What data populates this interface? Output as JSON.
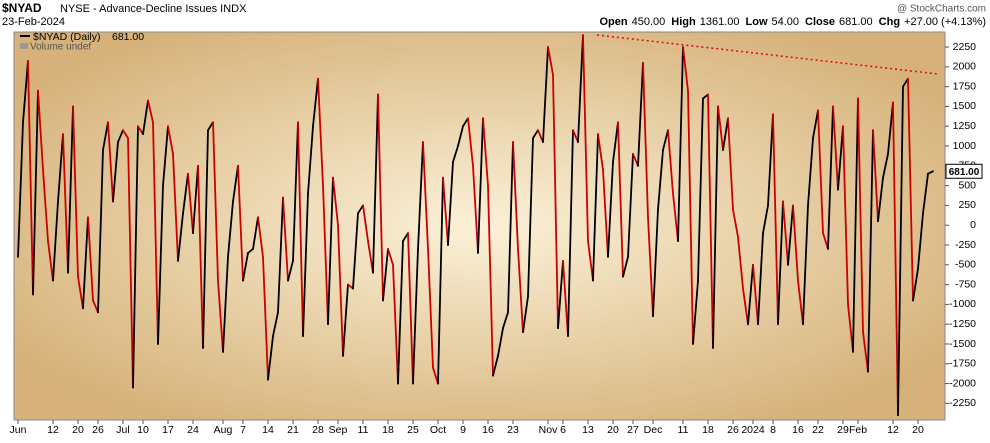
{
  "chart_data": {
    "type": "line",
    "title": "$NYAD",
    "subtitle": "NYSE - Advance-Decline Issues INDX",
    "date": "23-Feb-2024",
    "source": "@ StockCharts.com",
    "quote": [
      {
        "label": "Open",
        "value": "450.00"
      },
      {
        "label": "High",
        "value": "1361.00"
      },
      {
        "label": "Low",
        "value": "54.00"
      },
      {
        "label": "Close",
        "value": "681.00"
      },
      {
        "label": "Chg",
        "value": "+27.00 (+4.13%)"
      }
    ],
    "last_value_label": "681.00",
    "volume_note": "Volume undef",
    "up_color": "#000000",
    "down_color": "#cc0000",
    "grid": false,
    "ylim": [
      -2460,
      2440
    ],
    "yticks": [
      2250,
      2000,
      1750,
      1500,
      1250,
      1000,
      750,
      500,
      250,
      0,
      -250,
      -500,
      -750,
      -1000,
      -1250,
      -1500,
      -1750,
      -2000,
      -2250
    ],
    "categories": [
      "Jun",
      null,
      null,
      null,
      null,
      null,
      null,
      "12",
      null,
      null,
      null,
      null,
      "20",
      null,
      null,
      null,
      "26",
      null,
      null,
      null,
      null,
      "Jul",
      null,
      null,
      null,
      "10",
      null,
      null,
      null,
      null,
      "17",
      null,
      null,
      null,
      null,
      "24",
      null,
      null,
      null,
      null,
      null,
      "Aug",
      null,
      null,
      null,
      "7",
      null,
      null,
      null,
      null,
      "14",
      null,
      null,
      null,
      null,
      "21",
      null,
      null,
      null,
      null,
      "28",
      null,
      null,
      null,
      "Sep",
      null,
      null,
      null,
      null,
      "11",
      null,
      null,
      null,
      null,
      "18",
      null,
      null,
      null,
      null,
      "25",
      null,
      null,
      null,
      null,
      "Oct",
      null,
      null,
      null,
      null,
      "9",
      null,
      null,
      null,
      null,
      "16",
      null,
      null,
      null,
      null,
      "23",
      null,
      null,
      null,
      null,
      null,
      null,
      "Nov",
      null,
      null,
      "6",
      null,
      null,
      null,
      null,
      "13",
      null,
      null,
      null,
      null,
      "20",
      null,
      null,
      null,
      "27",
      null,
      null,
      null,
      "Dec",
      null,
      null,
      null,
      null,
      null,
      "11",
      null,
      null,
      null,
      null,
      "18",
      null,
      null,
      null,
      null,
      "26",
      null,
      null,
      null,
      "2024",
      null,
      null,
      null,
      "8",
      null,
      null,
      null,
      null,
      "16",
      null,
      null,
      null,
      "22",
      null,
      null,
      null,
      null,
      "29",
      null,
      null,
      "Feb",
      null,
      null,
      null,
      null,
      null,
      null,
      "12",
      null,
      null,
      null,
      null,
      "20",
      null,
      null,
      null
    ],
    "series": [
      {
        "name": "$NYAD (Daily)",
        "values": [
          -400,
          1300,
          2075,
          -875,
          1700,
          700,
          -200,
          -700,
          300,
          1150,
          -600,
          1500,
          -650,
          -1050,
          100,
          -950,
          -1100,
          950,
          1300,
          300,
          1050,
          1200,
          1100,
          -2050,
          1250,
          1150,
          1575,
          1300,
          -1500,
          500,
          1250,
          900,
          -450,
          150,
          650,
          -100,
          750,
          -1550,
          1200,
          1300,
          -700,
          -1600,
          -400,
          300,
          750,
          -700,
          -350,
          -300,
          100,
          -400,
          -1950,
          -1400,
          -1100,
          350,
          -700,
          -450,
          1300,
          -1400,
          400,
          1250,
          1850,
          500,
          -1250,
          600,
          0,
          -1650,
          -750,
          -800,
          150,
          250,
          -200,
          -600,
          1650,
          -950,
          -300,
          -500,
          -2000,
          -200,
          -100,
          -2000,
          -300,
          1050,
          -300,
          -1800,
          -2000,
          600,
          -250,
          800,
          1000,
          1250,
          1350,
          750,
          -350,
          1350,
          500,
          -1900,
          -1650,
          -1300,
          -1100,
          1050,
          -300,
          -1350,
          -900,
          1100,
          1200,
          1050,
          2250,
          1900,
          -1300,
          -450,
          -1400,
          1200,
          1050,
          2400,
          -200,
          -700,
          1150,
          700,
          -400,
          800,
          1300,
          -650,
          -400,
          900,
          750,
          2050,
          100,
          -1150,
          200,
          950,
          1200,
          400,
          -200,
          2250,
          1700,
          -1500,
          -700,
          1600,
          1650,
          -1550,
          1500,
          950,
          1350,
          200,
          -150,
          -800,
          -1250,
          -500,
          -1250,
          -100,
          250,
          1400,
          -1250,
          300,
          -500,
          250,
          -700,
          -1250,
          250,
          1100,
          1450,
          -100,
          -300,
          1500,
          450,
          1250,
          -1000,
          -1600,
          1600,
          -1350,
          -1850,
          1200,
          50,
          600,
          900,
          1550,
          -2400,
          1750,
          1850,
          -950,
          -550,
          150,
          650,
          681
        ]
      }
    ]
  }
}
